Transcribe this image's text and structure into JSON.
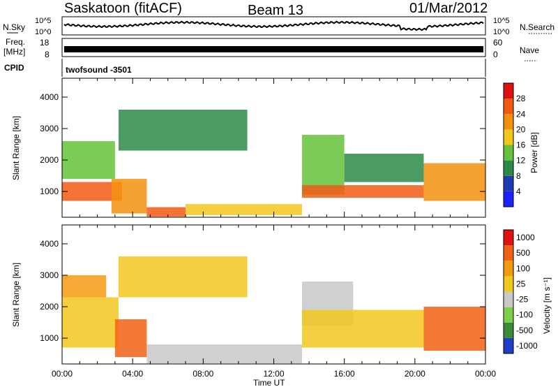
{
  "header": {
    "station": "Saskatoon (fitACF)",
    "beam": "Beam 13",
    "date": "01/Mar/2012"
  },
  "noise_panel": {
    "left_label": "N.Sky",
    "right_label": "N.Search",
    "left_ticks": [
      "10^5",
      "10^0"
    ],
    "right_ticks": [
      "10^5",
      "10^0"
    ]
  },
  "freq_panel": {
    "left_label_1": "Freq.",
    "left_label_2": "[MHz]",
    "right_label": "Nave",
    "left_ticks": [
      "18",
      "8"
    ],
    "right_ticks": [
      "60",
      "0"
    ]
  },
  "cpid_panel": {
    "label": "CPID",
    "value": "twofsound -3501"
  },
  "x_axis": {
    "label": "Time UT",
    "ticks": [
      "00:00",
      "04:00",
      "08:00",
      "12:00",
      "16:00",
      "20:00",
      "00:00"
    ]
  },
  "power_colorbar": {
    "label": "Power [dB]",
    "ticks": [
      "4",
      "8",
      "12",
      "16",
      "20",
      "24",
      "28"
    ],
    "colors": [
      "#1a22ff",
      "#1c3db0",
      "#2b8a4a",
      "#66c23a",
      "#f2c81e",
      "#f49010",
      "#f25a14",
      "#e01010"
    ]
  },
  "velocity_colorbar": {
    "label": "Velocity [m s⁻¹]",
    "ticks": [
      "1000",
      "500",
      "100",
      "25",
      "-25",
      "-100",
      "-500",
      "-1000"
    ],
    "colors": [
      "#1f3cc8",
      "#3a8a3a",
      "#7dd04a",
      "#c8c8c8",
      "#f2c81e",
      "#f49a10",
      "#f26214",
      "#e01010"
    ]
  },
  "chart_data": [
    {
      "type": "heatmap",
      "title": "Power",
      "xlabel": "Time UT",
      "ylabel": "Slant Range [km]",
      "x_ticks": [
        "00:00",
        "04:00",
        "08:00",
        "12:00",
        "16:00",
        "20:00",
        "00:00"
      ],
      "y_ticks": [
        1000,
        2000,
        3000,
        4000
      ],
      "xlim_hours": [
        0,
        24
      ],
      "ylim": [
        180,
        4600
      ],
      "colorbar_label": "Power [dB]",
      "colorbar_range": [
        0,
        30
      ],
      "regions": [
        {
          "t0": 0.0,
          "t1": 3.4,
          "r0": 700,
          "r1": 1300,
          "value": 24
        },
        {
          "t0": 0.0,
          "t1": 3.0,
          "r0": 1400,
          "r1": 2600,
          "value": 12
        },
        {
          "t0": 2.8,
          "t1": 4.8,
          "r0": 300,
          "r1": 1400,
          "value": 22
        },
        {
          "t0": 4.8,
          "t1": 7.0,
          "r0": 200,
          "r1": 500,
          "value": 26
        },
        {
          "t0": 3.2,
          "t1": 10.5,
          "r0": 2300,
          "r1": 3600,
          "value": 10
        },
        {
          "t0": 7.0,
          "t1": 13.6,
          "r0": 250,
          "r1": 600,
          "value": 18
        },
        {
          "t0": 13.6,
          "t1": 16.0,
          "r0": 900,
          "r1": 2800,
          "value": 14
        },
        {
          "t0": 13.6,
          "t1": 20.5,
          "r0": 800,
          "r1": 1200,
          "value": 24
        },
        {
          "t0": 16.0,
          "t1": 20.5,
          "r0": 1300,
          "r1": 2200,
          "value": 10
        },
        {
          "t0": 20.5,
          "t1": 24.0,
          "r0": 700,
          "r1": 1900,
          "value": 22
        }
      ]
    },
    {
      "type": "heatmap",
      "title": "Velocity",
      "xlabel": "Time UT",
      "ylabel": "Slant Range [km]",
      "x_ticks": [
        "00:00",
        "04:00",
        "08:00",
        "12:00",
        "16:00",
        "20:00",
        "00:00"
      ],
      "y_ticks": [
        1000,
        2000,
        3000,
        4000
      ],
      "xlim_hours": [
        0,
        24
      ],
      "ylim": [
        180,
        4600
      ],
      "colorbar_label": "Velocity [m s⁻¹]",
      "colorbar_range": [
        -1000,
        1000
      ],
      "regions": [
        {
          "t0": 0.0,
          "t1": 3.2,
          "r0": 700,
          "r1": 2300,
          "value": 0
        },
        {
          "t0": 0.0,
          "t1": 2.5,
          "r0": 2300,
          "r1": 3000,
          "value": 300
        },
        {
          "t0": 3.0,
          "t1": 4.8,
          "r0": 400,
          "r1": 1600,
          "value": 600
        },
        {
          "t0": 4.8,
          "t1": 13.6,
          "r0": 200,
          "r1": 800,
          "value": -150
        },
        {
          "t0": 3.2,
          "t1": 10.5,
          "r0": 2300,
          "r1": 3600,
          "value": 0
        },
        {
          "t0": 13.6,
          "t1": 16.5,
          "r0": 1400,
          "r1": 2800,
          "value": -150
        },
        {
          "t0": 13.6,
          "t1": 20.5,
          "r0": 700,
          "r1": 1900,
          "value": 0
        },
        {
          "t0": 20.5,
          "t1": 24.0,
          "r0": 600,
          "r1": 2000,
          "value": 500
        }
      ]
    }
  ]
}
